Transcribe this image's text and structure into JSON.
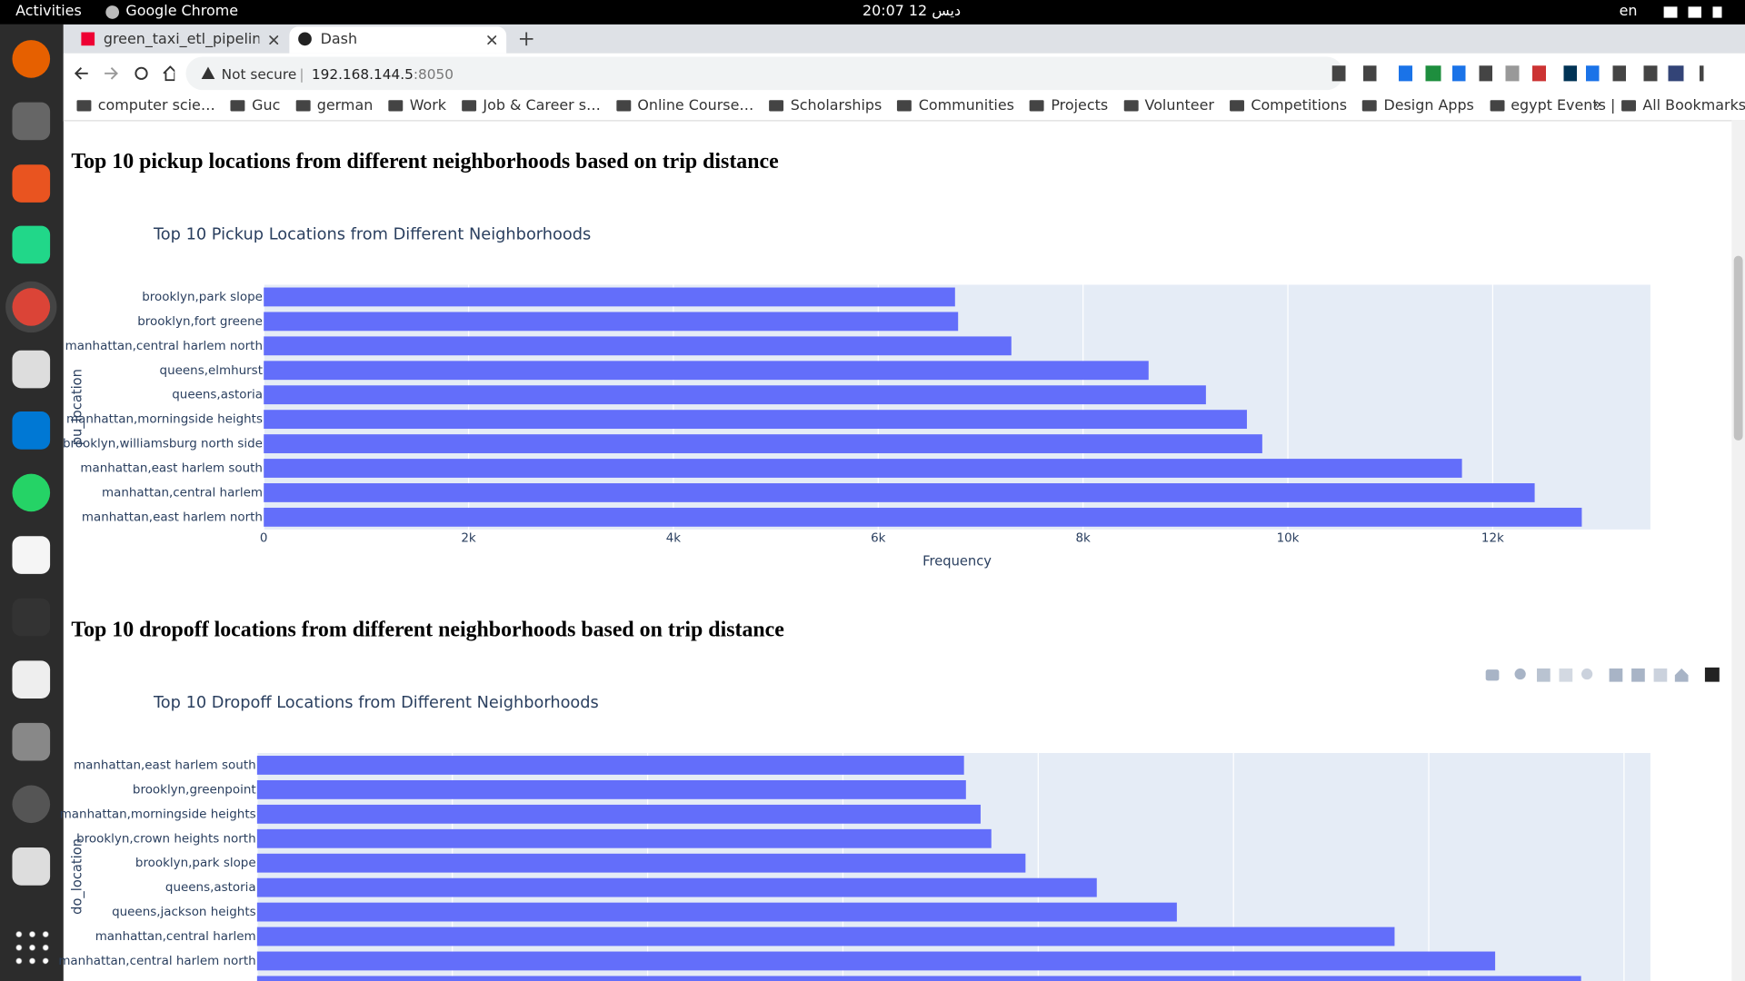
{
  "topbar": {
    "activities": "Activities",
    "app": "Google Chrome",
    "clock": "20:07 12 ديس",
    "lang": "en"
  },
  "tabs": [
    "green_taxi_etl_pipeline -",
    "Dash"
  ],
  "address": {
    "security": "Not secure",
    "host": "192.168.144.5",
    "port": ":8050"
  },
  "bookmarks": [
    "computer scie…",
    "Guc",
    "german",
    "Work",
    "Job & Career s…",
    "Online Course…",
    "Scholarships",
    "Communities",
    "Projects",
    "Volunteer",
    "Competitions",
    "Design Apps",
    "egypt Events |"
  ],
  "bookmarks_overflow": "»",
  "all_bookmarks": "All Bookmarks",
  "headings": [
    "Top 10 pickup locations from different neighborhoods based on trip distance",
    "Top 10 dropoff locations from different neighborhoods based on trip distance"
  ],
  "chart_data": [
    {
      "type": "bar",
      "orientation": "h",
      "title": "Top 10 Pickup Locations from Different Neighborhoods",
      "x_label": "Frequency",
      "y_label": "pu_location",
      "color": "#636efa",
      "grid": true,
      "categories": [
        "brooklyn,park slope",
        "brooklyn,fort greene",
        "manhattan,central harlem north",
        "queens,elmhurst",
        "queens,astoria",
        "manhattan,morningside heights",
        "brooklyn,williamsburg  north side",
        "manhattan,east harlem south",
        "manhattan,central harlem",
        "manhattan,east harlem north"
      ],
      "values": [
        6750,
        6780,
        7300,
        8640,
        9200,
        9600,
        9750,
        11700,
        12410,
        12870
      ],
      "xlim": [
        0,
        13540
      ],
      "xticks": [
        0,
        {
          "value": 2000,
          "label": "2k"
        },
        {
          "value": 4000,
          "label": "4k"
        },
        {
          "value": 6000,
          "label": "6k"
        },
        {
          "value": 8000,
          "label": "8k"
        },
        {
          "value": 10000,
          "label": "10k"
        },
        {
          "value": 12000,
          "label": "12k"
        }
      ]
    },
    {
      "type": "bar",
      "orientation": "h",
      "title": "Top 10 Dropoff Locations from Different Neighborhoods",
      "y_label": "do_location",
      "color": "#636efa",
      "grid": true,
      "categories": [
        "manhattan,east harlem south",
        "brooklyn,greenpoint",
        "manhattan,morningside heights",
        "brooklyn,crown heights north",
        "brooklyn,park slope",
        "queens,astoria",
        "queens,jackson heights",
        "manhattan,central harlem",
        "manhattan,central harlem north",
        null
      ],
      "values": [
        7240,
        7260,
        7410,
        7520,
        7870,
        8600,
        9420,
        11650,
        12680,
        13560
      ],
      "xlim": [
        0,
        14270
      ],
      "xticks": [
        0,
        2000,
        4000,
        6000,
        8000,
        10000,
        12000,
        14000
      ]
    }
  ]
}
